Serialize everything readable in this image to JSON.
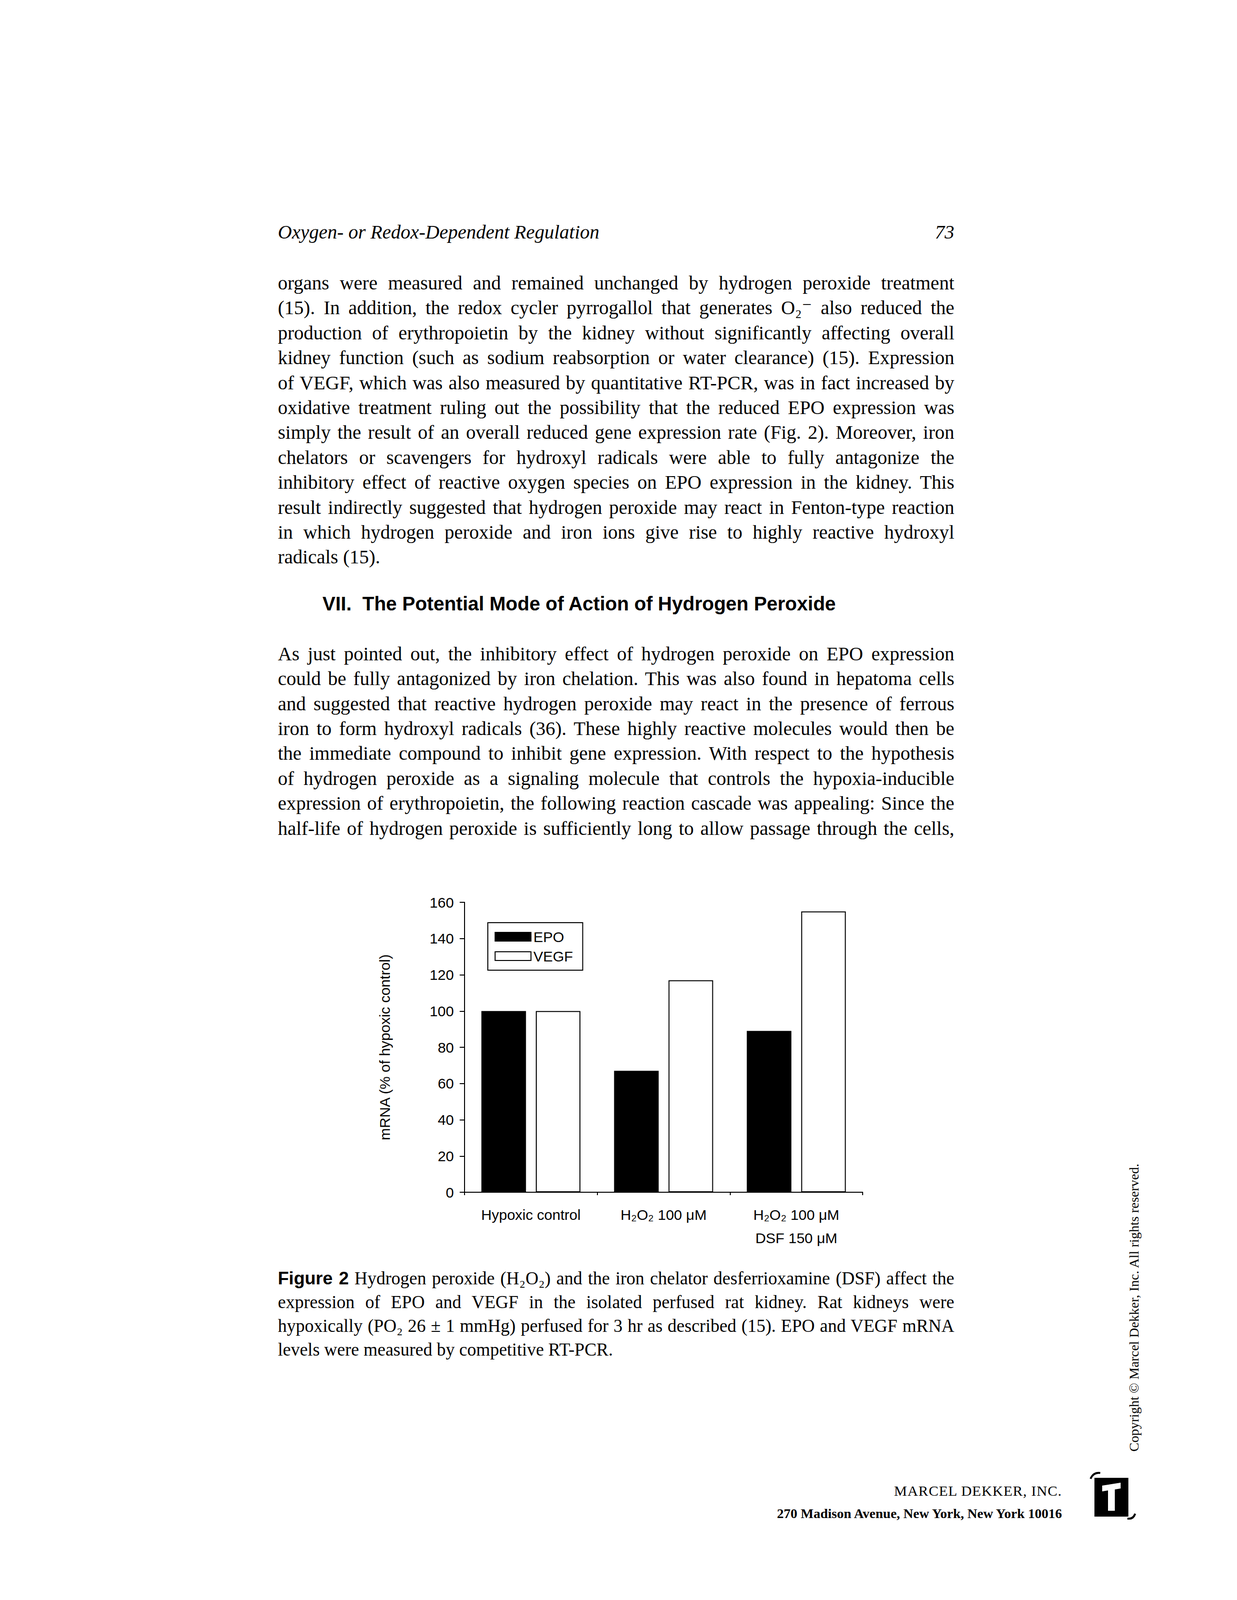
{
  "page": {
    "header": {
      "title": "Oxygen- or Redox-Dependent Regulation",
      "page_number": "73"
    },
    "body": [
      {
        "type": "paragraph",
        "lines": [
          "organs were measured and remained unchanged by hydrogen peroxide treatment",
          "(15). In addition, the redox cycler pyrrogallol that generates O₂⁻ also reduced the",
          "production of erythropoietin by the kidney without significantly affecting overall",
          "kidney function (such as sodium reabsorption or water clearance) (15). Expression",
          "of VEGF, which was also measured by quantitative RT-PCR, was in fact increased by",
          "oxidative treatment ruling out the possibility that the reduced EPO expression was",
          "simply the result of an overall reduced gene expression rate (Fig. 2). Moreover, iron",
          "chelators or scavengers for hydroxyl radicals were able to fully antagonize the",
          "inhibitory effect of reactive oxygen species on EPO expression in the kidney. This",
          "result indirectly suggested that hydrogen peroxide may react in Fenton-type reaction",
          "in which hydrogen peroxide and iron ions give rise to highly reactive hydroxyl",
          "radicals (15)."
        ]
      },
      {
        "type": "heading",
        "text": "VII.  The Potential Mode of Action of Hydrogen Peroxide"
      },
      {
        "type": "paragraph",
        "lines": [
          "As just pointed out, the inhibitory effect of hydrogen peroxide on EPO expression",
          "could be fully antagonized by iron chelation. This was also found in hepatoma cells",
          "and suggested that reactive hydrogen peroxide may react in the presence of ferrous",
          "iron to form hydroxyl radicals (36). These highly reactive molecules would then be",
          "the immediate compound to inhibit gene expression. With respect to the hypothesis",
          "of hydrogen peroxide as a signaling molecule that controls the hypoxia-inducible",
          "expression of erythropoietin, the following reaction cascade was appealing: Since the",
          "half-life of hydrogen peroxide is sufficiently long to allow passage through the cells,"
        ]
      }
    ],
    "caption": {
      "label": "Figure 2",
      "lines": [
        "Hydrogen peroxide (H₂O₂) and the iron chelator desferrioxamine (DSF) affect the",
        "expression of EPO and VEGF in the isolated perfused rat kidney. Rat kidneys were",
        "hypoxically (PO₂ 26 ± 1 mmHg) perfused for 3 hr as described (15). EPO and VEGF mRNA",
        "levels were measured by competitive RT-PCR."
      ]
    },
    "copyright": "Copyright © Marcel Dekker, Inc. All rights reserved.",
    "publisher": {
      "name": "MARCEL DEKKER, INC.",
      "address": "270 Madison Avenue, New York, New York 10016"
    }
  },
  "chart_data": {
    "type": "bar",
    "y_label": "mRNA (% of hypoxic control)",
    "categories": [
      "Hypoxic control",
      "H₂O₂ 100 μM",
      "H₂O₂ 100 μM\nDSF 150 μM"
    ],
    "series": [
      {
        "name": "EPO",
        "color": "#000000",
        "values": [
          100,
          67,
          89
        ]
      },
      {
        "name": "VEGF",
        "color": "#ffffff",
        "values": [
          100,
          117,
          155
        ]
      }
    ],
    "ylim": [
      0,
      160
    ],
    "yticks": [
      0,
      20,
      40,
      60,
      80,
      100,
      120,
      140,
      160
    ],
    "legend": "upper left",
    "grid": false
  }
}
